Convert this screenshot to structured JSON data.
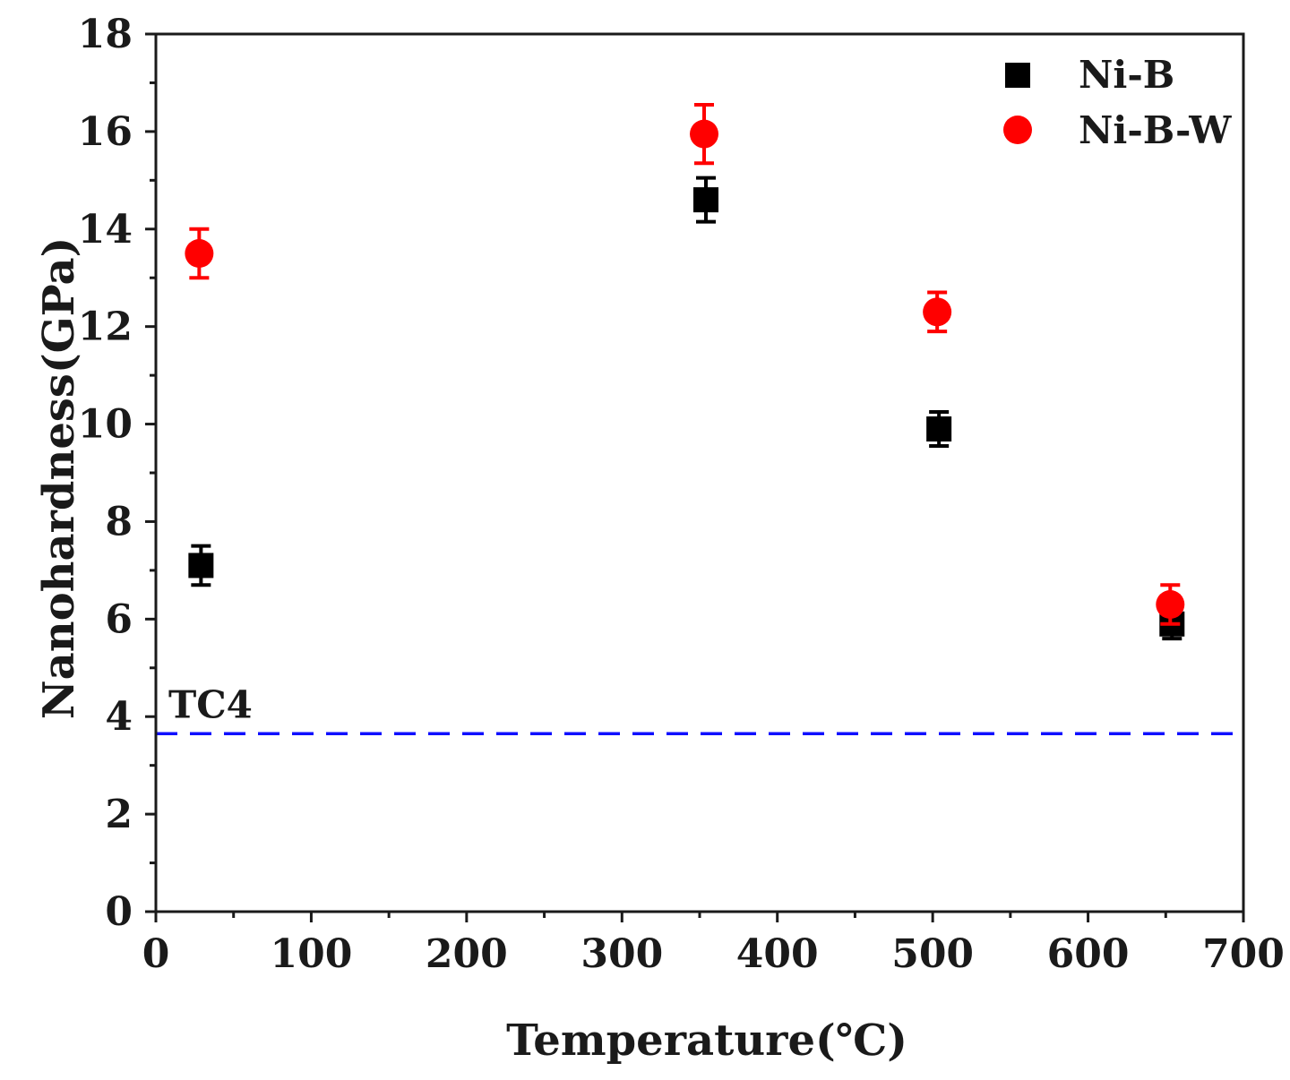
{
  "chart_data": {
    "type": "scatter",
    "title": "",
    "xlabel": "Temperature(℃)",
    "ylabel": "Nanohardness(GPa)",
    "xlim": [
      0,
      700
    ],
    "ylim": [
      0,
      18
    ],
    "xticks": [
      0,
      100,
      200,
      300,
      400,
      500,
      600,
      700
    ],
    "yticks": [
      0,
      2,
      4,
      6,
      8,
      10,
      12,
      14,
      16,
      18
    ],
    "legend_position": "top-right",
    "series": [
      {
        "name": "Ni-B",
        "marker": "square",
        "color": "#000000",
        "x": [
          25,
          350,
          500,
          650
        ],
        "y": [
          7.1,
          14.6,
          9.9,
          5.9
        ],
        "error": [
          0.4,
          0.45,
          0.35,
          0.3
        ]
      },
      {
        "name": "Ni-B-W",
        "marker": "circle",
        "color": "#ff0000",
        "x": [
          25,
          350,
          500,
          650
        ],
        "y": [
          13.5,
          15.95,
          12.3,
          6.3
        ],
        "error": [
          0.5,
          0.6,
          0.4,
          0.4
        ]
      }
    ],
    "reference_line": {
      "label": "TC4",
      "y": 3.65,
      "color": "#1010ff",
      "style": "dashed"
    }
  }
}
